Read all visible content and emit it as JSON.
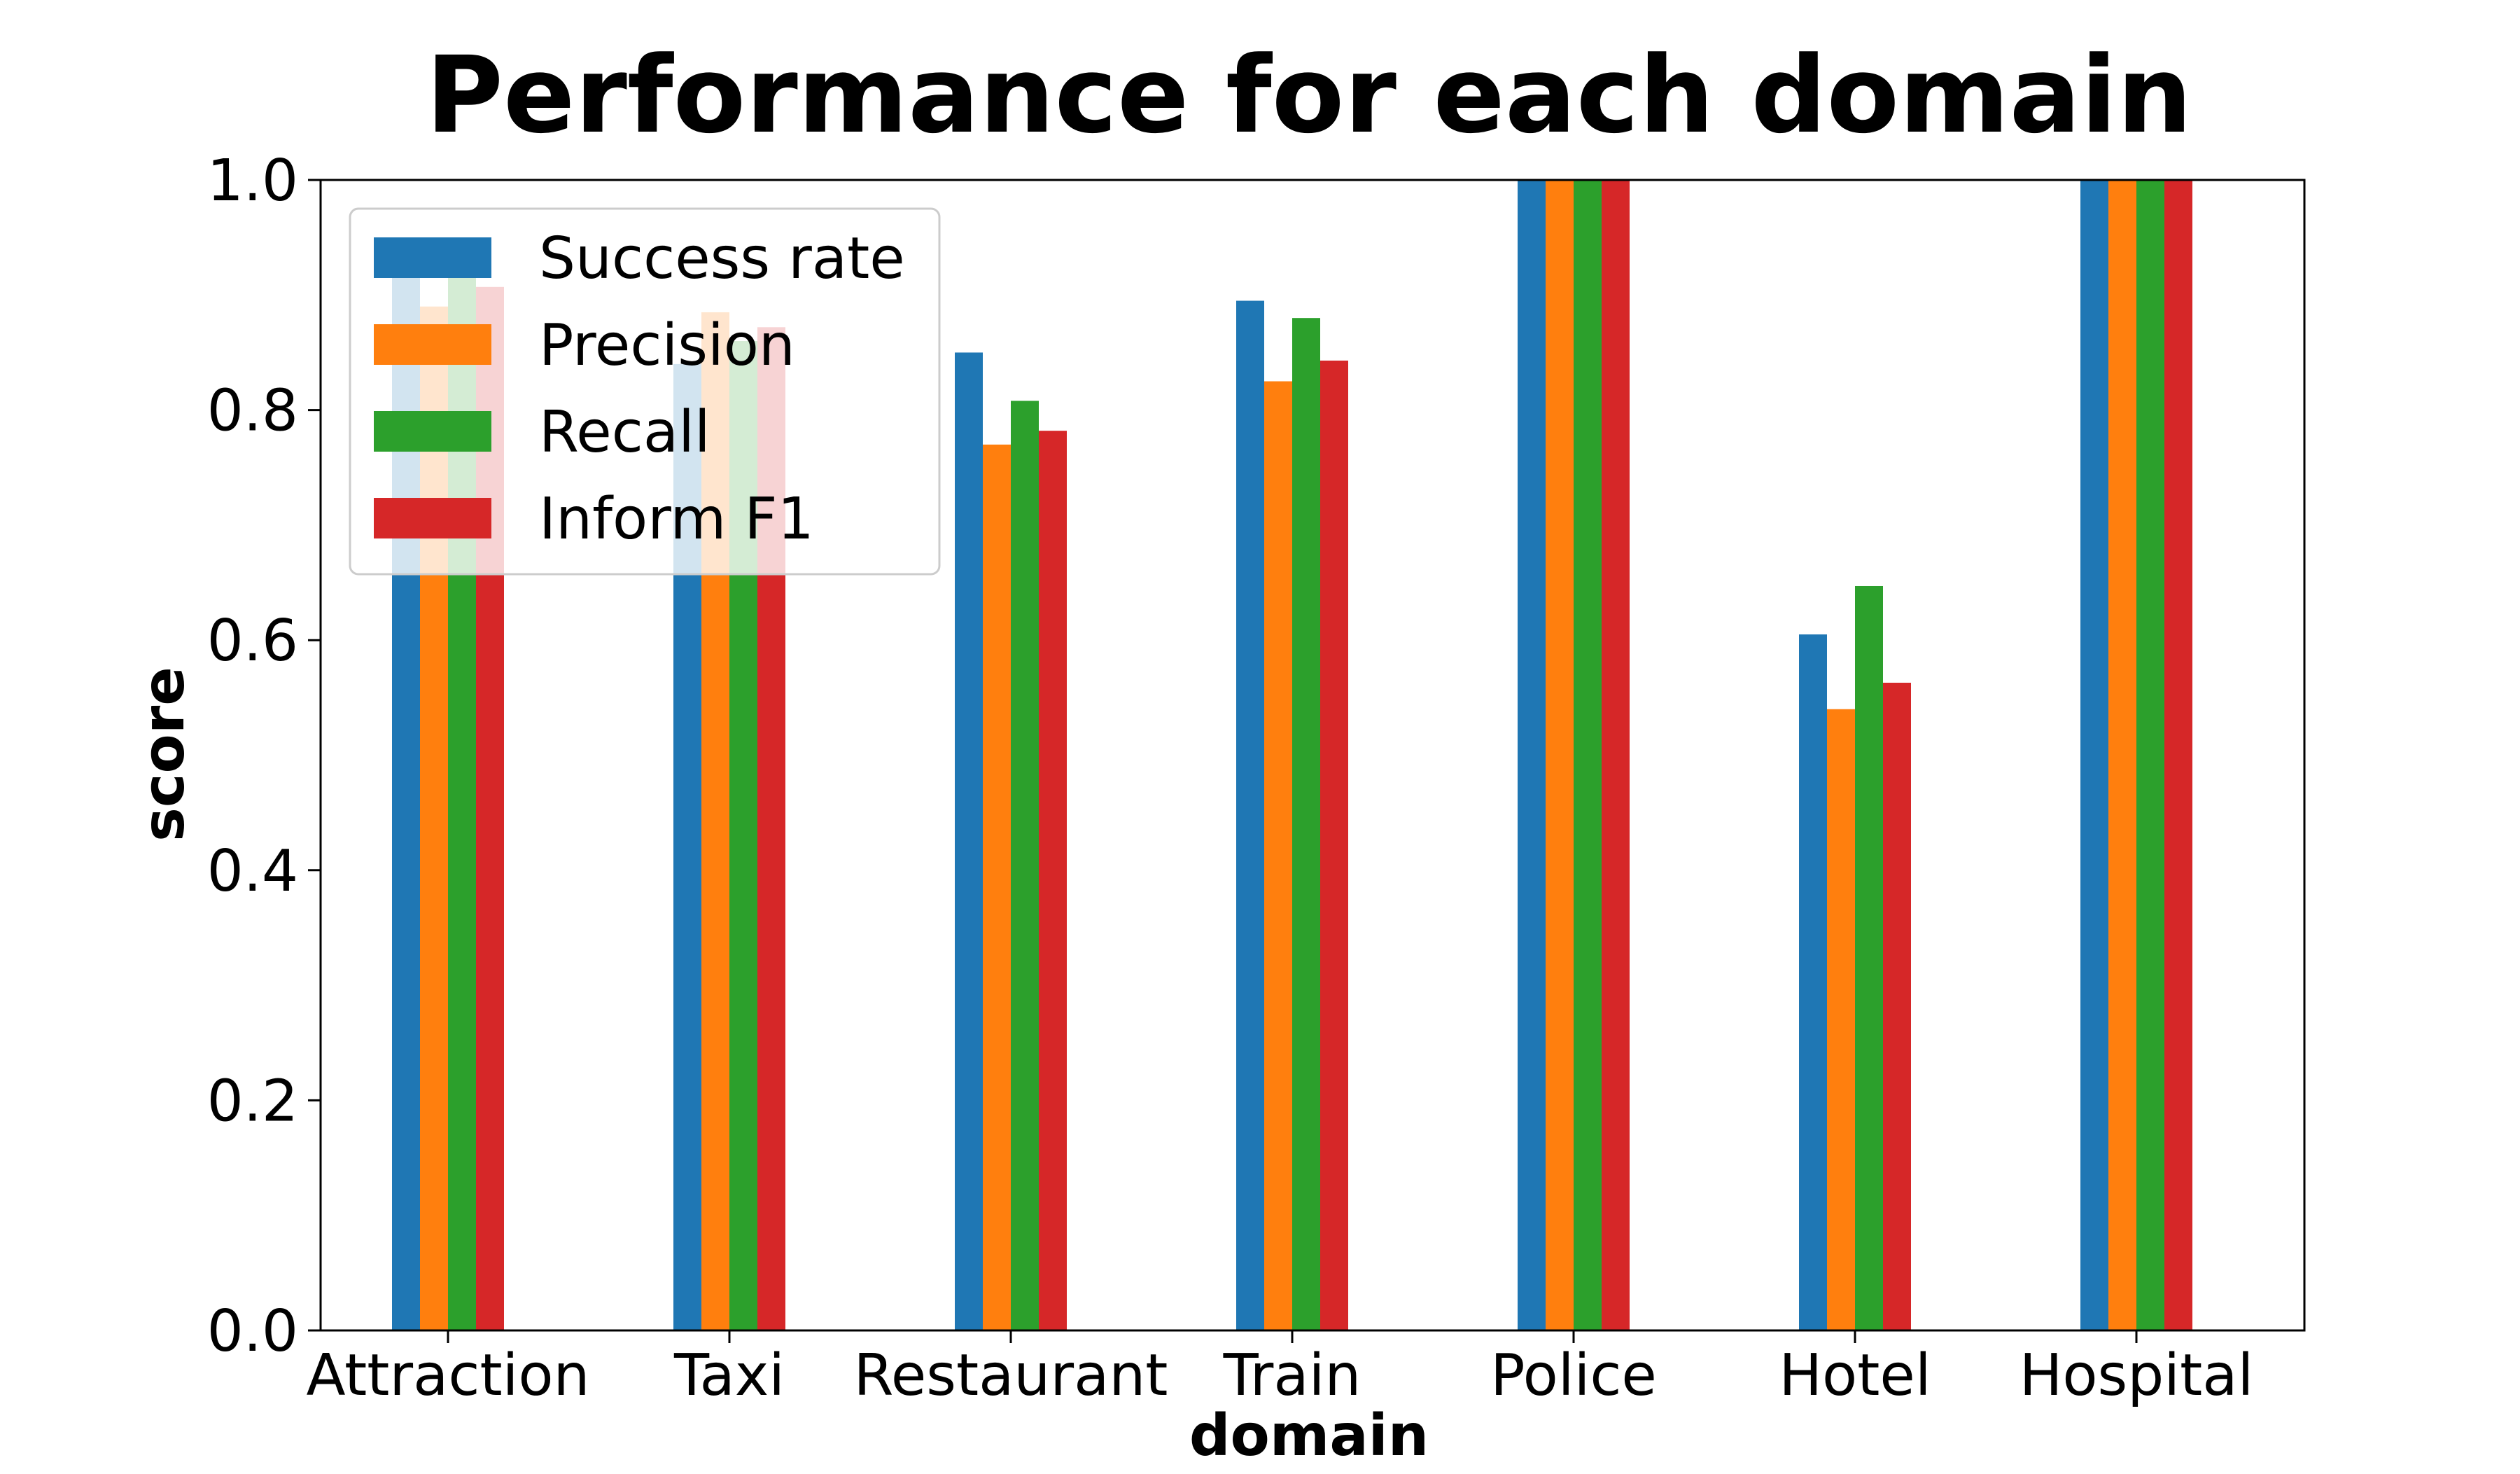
{
  "chart_data": {
    "type": "bar",
    "title": "Performance for each domain",
    "xlabel": "domain",
    "ylabel": "score",
    "ylim": [
      0,
      1.0
    ],
    "yticks": [
      "0.0",
      "0.2",
      "0.4",
      "0.6",
      "0.8",
      "1.0"
    ],
    "grid": false,
    "legend_position": "top-left",
    "categories": [
      "Attraction",
      "Taxi",
      "Restaurant",
      "Train",
      "Police",
      "Hotel",
      "Hospital"
    ],
    "series": [
      {
        "name": "Success rate",
        "color": "#1f77b4",
        "values": [
          0.92,
          0.84,
          0.85,
          0.895,
          1.0,
          0.605,
          1.0
        ]
      },
      {
        "name": "Precision",
        "color": "#ff7f0e",
        "values": [
          0.89,
          0.885,
          0.77,
          0.825,
          1.0,
          0.54,
          1.0
        ]
      },
      {
        "name": "Recall",
        "color": "#2ca02c",
        "values": [
          0.92,
          0.86,
          0.808,
          0.88,
          1.0,
          0.647,
          1.0
        ]
      },
      {
        "name": "Inform F1",
        "color": "#d62728",
        "values": [
          0.907,
          0.872,
          0.782,
          0.843,
          1.0,
          0.563,
          1.0
        ]
      }
    ]
  }
}
